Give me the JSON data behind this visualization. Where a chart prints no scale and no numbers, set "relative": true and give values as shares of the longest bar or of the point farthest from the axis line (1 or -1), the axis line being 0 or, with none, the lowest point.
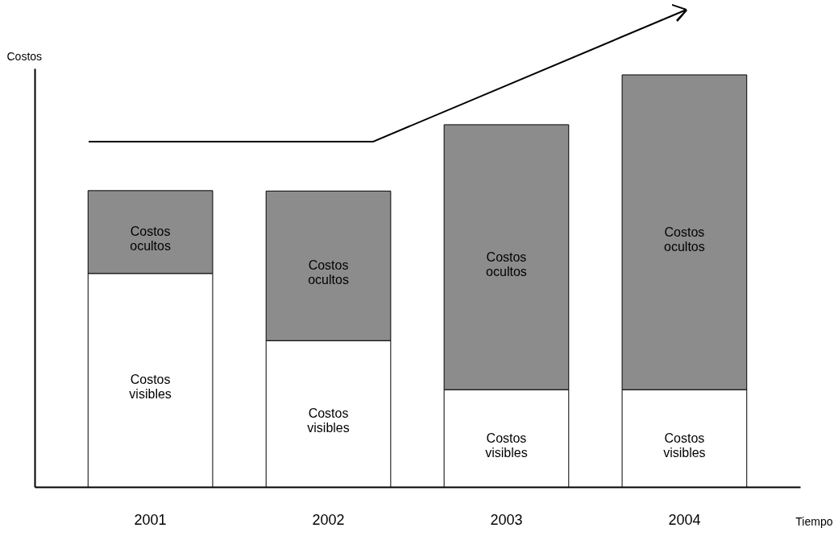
{
  "chart_data": {
    "type": "bar",
    "stacked": true,
    "relative": true,
    "xlabel": "Tiempo",
    "ylabel": "Costos",
    "categories": [
      "2001",
      "2002",
      "2003",
      "2004"
    ],
    "series": [
      {
        "name": "Costos visibles",
        "color": "#ffffff",
        "values": [
          0.518,
          0.355,
          0.236,
          0.236
        ]
      },
      {
        "name": "Costos ocultos",
        "color": "#8c8c8c",
        "values": [
          0.201,
          0.363,
          0.643,
          0.764
        ]
      }
    ]
  }
}
